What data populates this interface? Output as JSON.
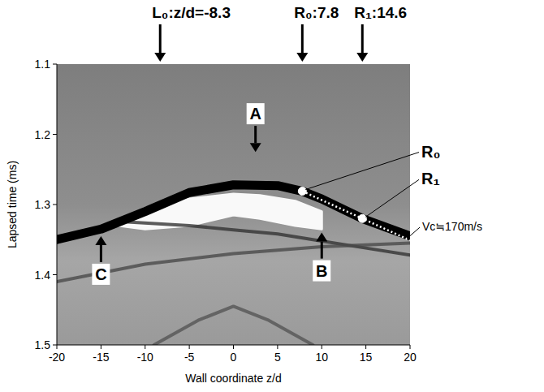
{
  "chart_data": {
    "type": "line",
    "x_label": "Wall coordinate z/d",
    "y_label": "Lapsed time (ms)",
    "xlim": [
      -20,
      20
    ],
    "ylim": [
      1.5,
      1.1
    ],
    "xticks": [
      -20,
      -15,
      -10,
      -5,
      0,
      5,
      10,
      15,
      20
    ],
    "yticks": [
      1.1,
      1.2,
      1.3,
      1.4,
      1.5
    ],
    "series": [
      {
        "type": "area",
        "color": "#ffffff",
        "x": [
          -13,
          -10,
          -5,
          0,
          3,
          7,
          10
        ],
        "values": [
          1.325,
          1.305,
          1.292,
          1.285,
          1.287,
          1.295,
          1.31
        ],
        "low": [
          1.33,
          1.335,
          1.33,
          1.315,
          1.32,
          1.33,
          1.335
        ]
      },
      {
        "type": "line",
        "color": "#333333",
        "x": [
          -12,
          -5,
          0,
          5,
          10,
          15,
          20
        ],
        "values": [
          1.325,
          1.33,
          1.336,
          1.342,
          1.352,
          1.362,
          1.372
        ]
      },
      {
        "type": "line",
        "color": "#4a4a4a",
        "x": [
          -20,
          -10,
          0,
          10,
          20
        ],
        "values": [
          1.41,
          1.385,
          1.37,
          1.36,
          1.355
        ]
      },
      {
        "type": "line",
        "color": "#555555",
        "x": [
          -9,
          -4,
          0,
          4,
          9
        ],
        "values": [
          1.5,
          1.465,
          1.445,
          1.465,
          1.5
        ]
      },
      {
        "type": "line",
        "color": "#000000",
        "x": [
          -20,
          -15,
          -10,
          -5,
          0,
          5,
          7.8,
          10,
          14.6,
          20
        ],
        "values": [
          1.35,
          1.335,
          1.31,
          1.283,
          1.272,
          1.273,
          1.281,
          1.292,
          1.32,
          1.345
        ]
      }
    ],
    "vc_line": {
      "x": [
        7.8,
        20
      ],
      "values": [
        1.281,
        1.351
      ],
      "label": "Vc≒170m/s",
      "line_style": "dotted"
    },
    "points": [
      {
        "label": "R₀",
        "x": 7.8,
        "y": 1.281
      },
      {
        "label": "R₁",
        "x": 14.6,
        "y": 1.32
      }
    ],
    "markers": [
      {
        "label": "L₀:z/d=-8.3",
        "z": -8.3
      },
      {
        "label": "R₀:7.8",
        "z": 7.8
      },
      {
        "label": "R₁:14.6",
        "z": 14.6
      }
    ],
    "annotations": [
      {
        "label": "A",
        "x": 2.5,
        "y": 1.225
      },
      {
        "label": "B",
        "x": 10,
        "y": 1.34
      },
      {
        "label": "C",
        "x": -15,
        "y": 1.345
      }
    ]
  }
}
